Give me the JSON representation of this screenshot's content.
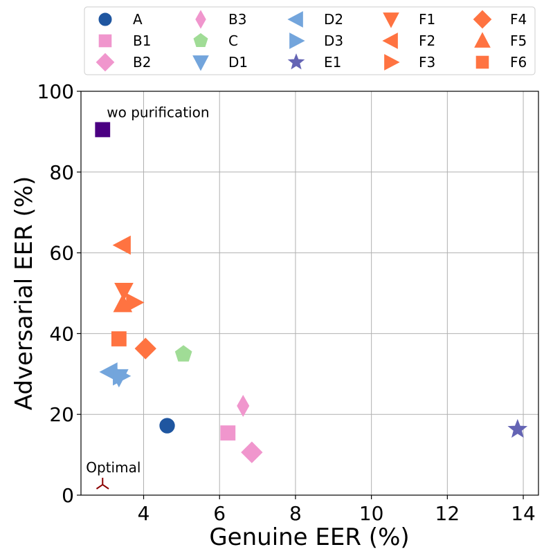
{
  "chart_data": {
    "type": "scatter",
    "title": "",
    "xlabel": "Genuine EER (%)",
    "ylabel": "Adversarial EER (%)",
    "xlim": [
      2.35,
      14.4
    ],
    "ylim": [
      0,
      100
    ],
    "xticks": [
      4,
      6,
      8,
      10,
      12,
      14
    ],
    "yticks": [
      0,
      20,
      40,
      60,
      80,
      100
    ],
    "grid": true,
    "legend_position": "top",
    "series": [
      {
        "name": "A",
        "marker": "circle",
        "color": "#1f56a0",
        "x": 4.62,
        "y": 17.2
      },
      {
        "name": "B1",
        "marker": "square",
        "color": "#f096cd",
        "x": 6.22,
        "y": 15.4
      },
      {
        "name": "B2",
        "marker": "diamond",
        "color": "#f096cd",
        "x": 6.85,
        "y": 10.6
      },
      {
        "name": "B3",
        "marker": "thin-diamond",
        "color": "#f096cd",
        "x": 6.62,
        "y": 22.1
      },
      {
        "name": "C",
        "marker": "pentagon",
        "color": "#a0dc96",
        "x": 5.05,
        "y": 34.9
      },
      {
        "name": "D1",
        "marker": "triangle-down",
        "color": "#73a5dc",
        "x": 3.35,
        "y": 29.2
      },
      {
        "name": "D2",
        "marker": "triangle-left",
        "color": "#73a5dc",
        "x": 3.1,
        "y": 30.5
      },
      {
        "name": "D3",
        "marker": "triangle-right",
        "color": "#73a5dc",
        "x": 3.4,
        "y": 29.5
      },
      {
        "name": "E1",
        "marker": "star",
        "color": "#6464b4",
        "x": 13.85,
        "y": 16.3
      },
      {
        "name": "F1",
        "marker": "triangle-down",
        "color": "#ff7341",
        "x": 3.48,
        "y": 50.6
      },
      {
        "name": "F2",
        "marker": "triangle-left",
        "color": "#ff7341",
        "x": 3.45,
        "y": 61.9
      },
      {
        "name": "F3",
        "marker": "triangle-right",
        "color": "#ff7341",
        "x": 3.75,
        "y": 47.7
      },
      {
        "name": "F4",
        "marker": "diamond",
        "color": "#ff7341",
        "x": 4.05,
        "y": 36.3
      },
      {
        "name": "F5",
        "marker": "triangle-up",
        "color": "#ff7341",
        "x": 3.45,
        "y": 47.3
      },
      {
        "name": "F6",
        "marker": "square",
        "color": "#ff7341",
        "x": 3.35,
        "y": 38.7
      }
    ],
    "annotations": [
      {
        "text": "wo purification",
        "x": 2.92,
        "y": 90.5,
        "marker": "square",
        "color": "#4b0082"
      },
      {
        "text": "Optimal",
        "x": 2.92,
        "y": 2.6,
        "marker": "tri-up",
        "color": "#8b0000"
      }
    ]
  }
}
